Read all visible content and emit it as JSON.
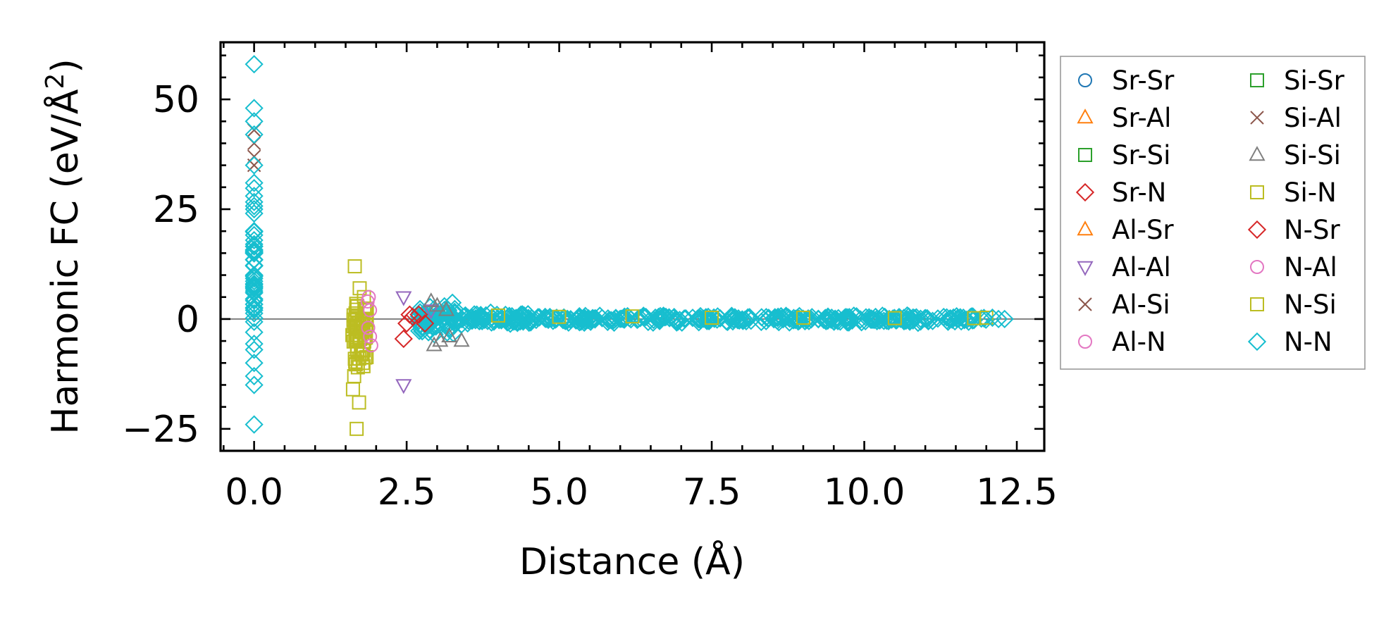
{
  "chart_data": {
    "type": "scatter",
    "title": "",
    "xlabel": "Distance (Å)",
    "ylabel_main": "Harmonic FC (eV/Å",
    "ylabel_sup": "2",
    "ylabel_close": ")",
    "xlim": [
      -0.55,
      12.95
    ],
    "ylim": [
      -30,
      63
    ],
    "xticks": [
      0,
      2.5,
      5,
      7.5,
      10,
      12.5
    ],
    "xtick_labels": [
      "0.0",
      "2.5",
      "5.0",
      "7.5",
      "10.0",
      "12.5"
    ],
    "yticks": [
      -25,
      0,
      25,
      50
    ],
    "ytick_labels": [
      "−25",
      "0",
      "25",
      "50"
    ],
    "zero_line": 0,
    "legend_position": "outside-right",
    "legend": [
      {
        "label": "Sr-Sr",
        "marker": "circle",
        "color": "#1f77b4"
      },
      {
        "label": "Sr-Al",
        "marker": "triangle-up",
        "color": "#ff7f0e"
      },
      {
        "label": "Sr-Si",
        "marker": "square",
        "color": "#2ca02c"
      },
      {
        "label": "Sr-N",
        "marker": "diamond",
        "color": "#d62728"
      },
      {
        "label": "Al-Sr",
        "marker": "triangle-up",
        "color": "#ff7f0e"
      },
      {
        "label": "Al-Al",
        "marker": "triangle-down",
        "color": "#9467bd"
      },
      {
        "label": "Al-Si",
        "marker": "x",
        "color": "#8c564b"
      },
      {
        "label": "Al-N",
        "marker": "circle",
        "color": "#e377c2"
      },
      {
        "label": "Si-Sr",
        "marker": "square",
        "color": "#2ca02c"
      },
      {
        "label": "Si-Al",
        "marker": "x",
        "color": "#8c564b"
      },
      {
        "label": "Si-Si",
        "marker": "triangle-up",
        "color": "#7f7f7f"
      },
      {
        "label": "Si-N",
        "marker": "square",
        "color": "#bcbd22"
      },
      {
        "label": "N-Sr",
        "marker": "diamond",
        "color": "#d62728"
      },
      {
        "label": "N-Al",
        "marker": "circle",
        "color": "#e377c2"
      },
      {
        "label": "N-Si",
        "marker": "square",
        "color": "#bcbd22"
      },
      {
        "label": "N-N",
        "marker": "diamond",
        "color": "#17becf"
      }
    ],
    "series": [
      {
        "name": "Si-N",
        "marker": "square",
        "color": "#bcbd22",
        "points": [
          [
            1.65,
            12
          ],
          [
            1.68,
            -25
          ],
          [
            1.72,
            -19
          ],
          [
            1.62,
            -16
          ],
          [
            1.7,
            -11
          ],
          [
            1.75,
            -8
          ],
          [
            1.66,
            -5
          ],
          [
            1.8,
            5
          ],
          [
            1.73,
            7
          ],
          [
            1.69,
            3
          ],
          [
            1.77,
            -2
          ],
          [
            1.83,
            2
          ],
          [
            1.64,
            -13
          ],
          [
            1.78,
            -10
          ]
        ]
      },
      {
        "name": "Al-N",
        "marker": "circle",
        "color": "#e377c2",
        "points": [
          [
            1.88,
            5
          ],
          [
            1.9,
            2
          ],
          [
            1.87,
            -2
          ],
          [
            1.92,
            -6
          ],
          [
            1.86,
            4
          ],
          [
            1.9,
            -4
          ]
        ]
      },
      {
        "name": "Sr-N",
        "marker": "diamond",
        "color": "#d62728",
        "points": [
          [
            2.45,
            -4.5
          ],
          [
            2.5,
            -1
          ],
          [
            2.55,
            1
          ],
          [
            2.6,
            0.5
          ],
          [
            2.7,
            1
          ],
          [
            2.8,
            -1
          ]
        ]
      },
      {
        "name": "Al-Al",
        "marker": "triangle-down",
        "color": "#9467bd",
        "points": [
          [
            2.45,
            5
          ],
          [
            2.45,
            -15
          ],
          [
            2.9,
            2
          ]
        ]
      },
      {
        "name": "Si-Si",
        "marker": "triangle-up",
        "color": "#7f7f7f",
        "points": [
          [
            2.95,
            -6
          ],
          [
            3.05,
            -5
          ],
          [
            3.2,
            -4
          ],
          [
            3.4,
            -5
          ],
          [
            3.0,
            3
          ],
          [
            3.15,
            2
          ],
          [
            2.9,
            4
          ]
        ]
      },
      {
        "name": "Al-Si",
        "marker": "x",
        "color": "#8c564b",
        "points": [
          [
            0,
            40
          ],
          [
            0,
            37
          ],
          [
            0,
            43
          ],
          [
            0,
            35
          ]
        ]
      },
      {
        "name": "N-Si",
        "marker": "square",
        "color": "#bcbd22",
        "points": [
          [
            4.0,
            0.8
          ],
          [
            5.0,
            0.5
          ],
          [
            6.2,
            0.6
          ],
          [
            7.5,
            0.3
          ],
          [
            9.0,
            0.3
          ],
          [
            10.5,
            0.2
          ],
          [
            11.8,
            0.2
          ],
          [
            12.0,
            0.3
          ]
        ]
      },
      {
        "name": "N-N",
        "marker": "diamond",
        "color": "#17becf",
        "points": [
          [
            0,
            58
          ],
          [
            0,
            48
          ],
          [
            0,
            45
          ],
          [
            0,
            42
          ],
          [
            0,
            -24
          ],
          [
            0,
            -15
          ],
          [
            0,
            -13
          ],
          [
            0,
            -10
          ],
          [
            0,
            -7
          ],
          [
            0,
            -3
          ],
          [
            0,
            2
          ],
          [
            0,
            6
          ],
          [
            0,
            10
          ],
          [
            0,
            15
          ],
          [
            0,
            20
          ],
          [
            0,
            25
          ],
          [
            0,
            28
          ],
          [
            0,
            31
          ],
          [
            0,
            35
          ],
          [
            12.2,
            0
          ],
          [
            12.3,
            0
          ],
          [
            12.1,
            0.3
          ]
        ]
      }
    ],
    "bands": [
      {
        "name": "N-N",
        "marker": "diamond",
        "color": "#17becf",
        "x0": 0,
        "x1": 0,
        "ymin": -14,
        "ymax": 36,
        "count": 45
      },
      {
        "name": "N-Si",
        "marker": "square",
        "color": "#bcbd22",
        "x0": 1.6,
        "x1": 1.85,
        "ymin": -12,
        "ymax": 6,
        "count": 60
      },
      {
        "name": "N-N",
        "marker": "diamond",
        "color": "#17becf",
        "x0": 2.7,
        "x1": 3.3,
        "ymin": -4,
        "ymax": 4,
        "count": 70
      },
      {
        "name": "N-N",
        "marker": "diamond",
        "color": "#17becf",
        "x0": 3.3,
        "x1": 4.5,
        "ymin": -1.5,
        "ymax": 1.5,
        "count": 70
      },
      {
        "name": "N-N",
        "marker": "diamond",
        "color": "#17becf",
        "x0": 4.5,
        "x1": 12.0,
        "ymin": -0.9,
        "ymax": 0.9,
        "count": 320
      }
    ]
  }
}
